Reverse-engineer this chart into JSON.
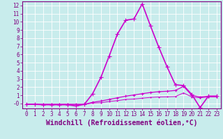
{
  "xlabel": "Windchill (Refroidissement éolien,°C)",
  "background_color": "#c8ecec",
  "grid_color": "#b0d8d8",
  "line_color": "#cc00cc",
  "xlim": [
    -0.5,
    23.5
  ],
  "ylim": [
    -0.6,
    12.5
  ],
  "xticks": [
    0,
    1,
    2,
    3,
    4,
    5,
    6,
    7,
    8,
    9,
    10,
    11,
    12,
    13,
    14,
    15,
    16,
    17,
    18,
    19,
    20,
    21,
    22,
    23
  ],
  "yticks": [
    0,
    1,
    2,
    3,
    4,
    5,
    6,
    7,
    8,
    9,
    10,
    11,
    12
  ],
  "series": [
    {
      "x": [
        0,
        1,
        2,
        3,
        4,
        5,
        6,
        7,
        8,
        9,
        10,
        11,
        12,
        13,
        14,
        15,
        16,
        17,
        18,
        19,
        20,
        21,
        22,
        23
      ],
      "y": [
        -0.1,
        -0.1,
        -0.15,
        -0.15,
        -0.15,
        -0.15,
        -0.3,
        -0.1,
        1.2,
        3.2,
        5.8,
        8.5,
        10.2,
        10.35,
        12.2,
        9.5,
        6.9,
        4.5,
        2.3,
        2.2,
        1.1,
        -0.5,
        0.9,
        0.9
      ],
      "color": "#cc00cc",
      "linewidth": 1.2,
      "markersize": 4
    },
    {
      "x": [
        0,
        1,
        2,
        3,
        4,
        5,
        6,
        7,
        8,
        9,
        10,
        11,
        12,
        13,
        14,
        15,
        16,
        17,
        18,
        19,
        20,
        21,
        22,
        23
      ],
      "y": [
        -0.1,
        -0.1,
        -0.1,
        -0.1,
        -0.1,
        -0.1,
        -0.1,
        -0.1,
        0.15,
        0.3,
        0.5,
        0.7,
        0.9,
        1.05,
        1.2,
        1.35,
        1.45,
        1.5,
        1.6,
        2.1,
        1.0,
        0.8,
        0.9,
        0.9
      ],
      "color": "#cc00cc",
      "linewidth": 0.9,
      "markersize": 3
    },
    {
      "x": [
        0,
        1,
        2,
        3,
        4,
        5,
        6,
        7,
        8,
        9,
        10,
        11,
        12,
        13,
        14,
        15,
        16,
        17,
        18,
        19,
        20,
        21,
        22,
        23
      ],
      "y": [
        -0.1,
        -0.1,
        -0.1,
        -0.1,
        -0.1,
        -0.1,
        -0.1,
        -0.1,
        0.05,
        0.1,
        0.25,
        0.35,
        0.5,
        0.55,
        0.65,
        0.75,
        0.8,
        0.82,
        0.85,
        1.3,
        0.8,
        0.7,
        0.8,
        0.8
      ],
      "color": "#cc00cc",
      "linewidth": 0.7,
      "markersize": 2
    }
  ],
  "xlabel_fontsize": 7,
  "tick_fontsize": 5.5,
  "tick_color": "#800080",
  "spine_color": "#800080"
}
